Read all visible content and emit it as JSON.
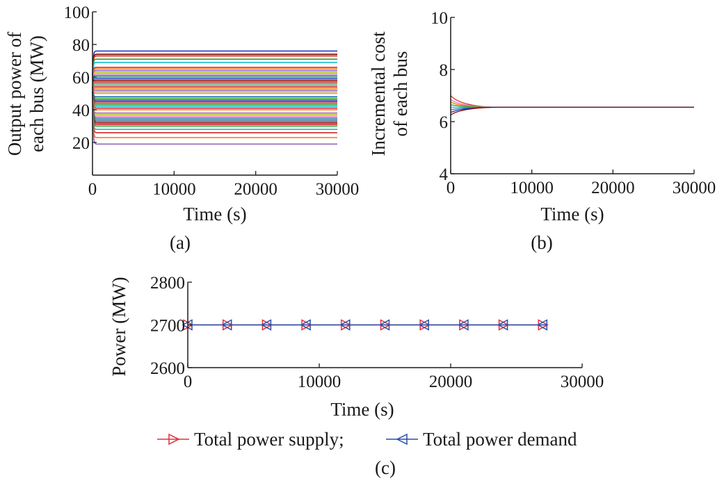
{
  "chart_data": [
    {
      "panel": "(a)",
      "type": "line",
      "xlabel": "Time (s)",
      "ylabel": [
        "Output power of",
        "each bus (MW)"
      ],
      "xlim": [
        0,
        30000
      ],
      "ylim": [
        0,
        100
      ],
      "xticks": [
        "0",
        "10000",
        "20000",
        "30000"
      ],
      "yticks": [
        "20",
        "40",
        "60",
        "80",
        "100"
      ],
      "series_steady_values": [
        76,
        74,
        73,
        71,
        69,
        66,
        65,
        64,
        63,
        62,
        61,
        60,
        59,
        58,
        57,
        56,
        55,
        54,
        53,
        52,
        51,
        50,
        48,
        47,
        46,
        45,
        44,
        43,
        42,
        41,
        40,
        38,
        37,
        36,
        35,
        34,
        33,
        32,
        31,
        30,
        28,
        26,
        23,
        19
      ],
      "colors": [
        "#1f3fbf",
        "#8b0000",
        "#cc2222",
        "#2ca02c",
        "#17becf",
        "#d62728",
        "#ff7f0e",
        "#9467bd",
        "#bcbd22",
        "#e377c2",
        "#1f77b4",
        "#2ca02c"
      ]
    },
    {
      "panel": "(b)",
      "type": "line",
      "xlabel": "Time (s)",
      "ylabel": [
        "Incremental cost",
        "of each bus"
      ],
      "xlim": [
        0,
        30000
      ],
      "ylim": [
        4,
        10
      ],
      "xticks": [
        "0",
        "10000",
        "20000",
        "30000"
      ],
      "yticks": [
        "4",
        "6",
        "8",
        "10"
      ],
      "converged_value": 6.55,
      "initial_values": [
        7.0,
        6.85,
        6.75,
        6.65,
        6.55,
        6.45,
        6.35,
        6.25
      ]
    },
    {
      "panel": "(c)",
      "type": "line",
      "xlabel": "Time (s)",
      "ylabel": "Power (MW)",
      "xlim": [
        0,
        30000
      ],
      "ylim": [
        2600,
        2800
      ],
      "xticks": [
        "0",
        "10000",
        "20000",
        "30000"
      ],
      "yticks": [
        "2600",
        "2700",
        "2800"
      ],
      "series": [
        {
          "name": "Total power supply;",
          "color": "#e0303a",
          "marker": "triangle-right",
          "x": [
            0,
            3000,
            6000,
            9000,
            12000,
            15000,
            18000,
            21000,
            24000,
            27000
          ],
          "values": [
            2700,
            2700,
            2700,
            2700,
            2700,
            2700,
            2700,
            2700,
            2700,
            2700
          ]
        },
        {
          "name": "Total power demand",
          "color": "#2a4fa8",
          "marker": "triangle-left",
          "x": [
            0,
            3000,
            6000,
            9000,
            12000,
            15000,
            18000,
            21000,
            24000,
            27000
          ],
          "values": [
            2700,
            2700,
            2700,
            2700,
            2700,
            2700,
            2700,
            2700,
            2700,
            2700
          ]
        }
      ]
    }
  ]
}
